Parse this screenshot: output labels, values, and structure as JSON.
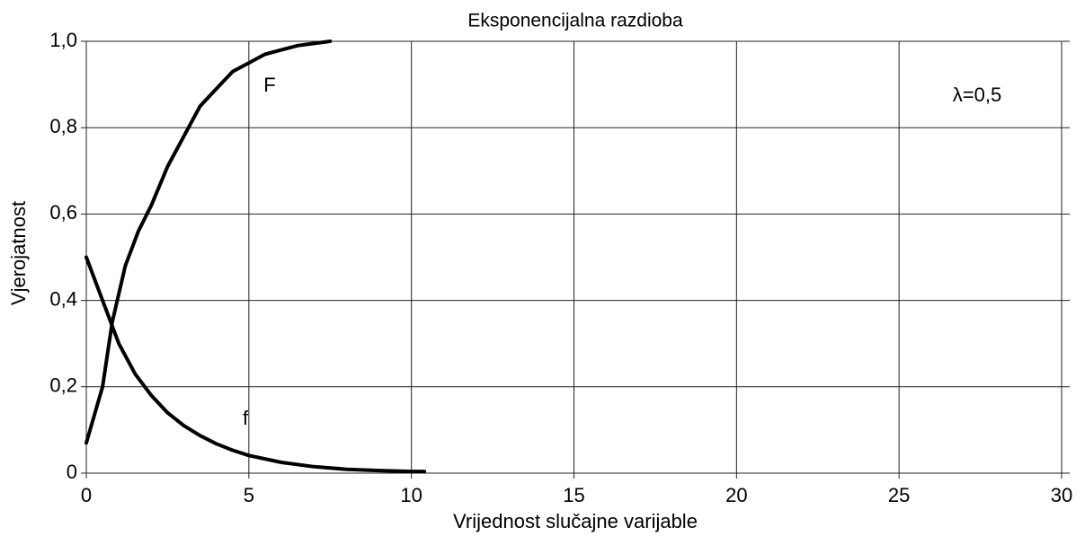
{
  "chart_data": {
    "type": "line",
    "title": "Eksponencijalna razdioba",
    "x_label": "Vrijednost slučajne varijable",
    "y_label": "Vjerojatnost",
    "annotations": [
      "λ=0,5"
    ],
    "series": [
      {
        "name": "F",
        "color": "#000000",
        "x": [
          0,
          0.5,
          0.8,
          1.2,
          1.6,
          2,
          2.5,
          3,
          3.5,
          4,
          4.5,
          5,
          5.5,
          6,
          6.5,
          7,
          7.5
        ],
        "values": [
          0.07,
          0.2,
          0.35,
          0.48,
          0.56,
          0.62,
          0.71,
          0.78,
          0.85,
          0.89,
          0.93,
          0.95,
          0.97,
          0.98,
          0.99,
          0.995,
          1.0
        ]
      },
      {
        "name": "f",
        "color": "#000000",
        "x": [
          0,
          0.5,
          1,
          1.5,
          2,
          2.5,
          3,
          3.5,
          4,
          4.5,
          5,
          6,
          7,
          8,
          9,
          10,
          10.4
        ],
        "values": [
          0.5,
          0.4,
          0.3,
          0.23,
          0.18,
          0.14,
          0.11,
          0.087,
          0.068,
          0.053,
          0.041,
          0.025,
          0.015,
          0.009,
          0.006,
          0.004,
          0.004
        ]
      }
    ],
    "xlim": [
      0,
      30
    ],
    "xticks": [
      0,
      5,
      10,
      15,
      20,
      25,
      30
    ],
    "ylim": [
      0,
      1
    ],
    "yticks": [
      0,
      {
        "value": 0.2,
        "label": "0,2"
      },
      {
        "value": 0.4,
        "label": "0,4"
      },
      {
        "value": 0.6,
        "label": "0,6"
      },
      {
        "value": 0.8,
        "label": "0,8"
      },
      {
        "value": 1.0,
        "label": "1,0"
      }
    ],
    "grid": true
  }
}
